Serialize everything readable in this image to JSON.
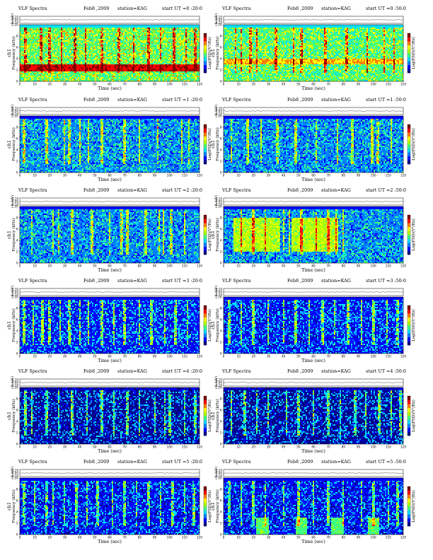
{
  "chart_data": [
    {
      "type": "heatmap",
      "panel": "spectrogram",
      "header": {
        "title": "VLF Spectra",
        "date": "Feb8 ,2009",
        "station": "station=KAG",
        "start": "start  UT =0 :20:0"
      },
      "ch_label": "ch 1(V)",
      "ch_ticks": [
        "0.10",
        "0.00",
        "-0.10"
      ],
      "ylabel_main": "ch1",
      "ylabel_sub": "Frequency  (kHz)",
      "yticks": [
        "0",
        "2",
        "4",
        "6",
        "8",
        "10"
      ],
      "xlabel": "Time  (sec)",
      "xticks": [
        "0",
        "10",
        "20",
        "30",
        "40",
        "50",
        "60",
        "70",
        "80",
        "90",
        "100",
        "110",
        "120"
      ],
      "xlim": [
        0,
        120
      ],
      "ylim": [
        0,
        10
      ],
      "cbar_label": "Log(PSD)(V²/Hz)",
      "base_intensity": 0.55,
      "band_2_5kHz": 0.95,
      "burst_times_sec": [
        4,
        14,
        20,
        28,
        37,
        44,
        55,
        66,
        76,
        86,
        94,
        103,
        111,
        117
      ]
    },
    {
      "type": "heatmap",
      "panel": "spectrogram",
      "header": {
        "title": "VLF Spectra",
        "date": "Feb8 ,2009",
        "station": "station=KAG",
        "start": "start  UT =0 :50:0"
      },
      "ch_label": "ch 1(V)",
      "ch_ticks": [
        "0.10",
        "0.00",
        "-0.10"
      ],
      "ylabel_main": "ch1",
      "ylabel_sub": "Frequency  (kHz)",
      "yticks": [
        "0",
        "2",
        "4",
        "6",
        "8",
        "10"
      ],
      "xlabel": "Time  (sec)",
      "xticks": [
        "0",
        "10",
        "20",
        "30",
        "40",
        "50",
        "60",
        "70",
        "80",
        "90",
        "100",
        "110",
        "120"
      ],
      "xlim": [
        0,
        120
      ],
      "ylim": [
        0,
        10
      ],
      "cbar_label": "Log(PSD)(V²/Hz)",
      "base_intensity": 0.5,
      "band_3_5kHz": 0.75,
      "burst_times_sec": [
        8,
        12,
        18,
        22,
        35,
        47,
        52,
        68,
        82,
        96,
        107,
        114
      ]
    },
    {
      "type": "heatmap",
      "panel": "spectrogram",
      "header": {
        "title": "VLF Spectra",
        "date": "Feb8 ,2009",
        "station": "station=KAG",
        "start": "start  UT =1 :20:0"
      },
      "ch_label": "ch 1(V)",
      "ch_ticks": [
        "0.10",
        "0.00",
        "-0.10"
      ],
      "ylabel_main": "ch1",
      "ylabel_sub": "Frequency  (kHz)",
      "yticks": [
        "0",
        "2",
        "4",
        "6",
        "8",
        "10"
      ],
      "xlabel": "Time  (sec)",
      "xticks": [
        "0",
        "10",
        "20",
        "30",
        "40",
        "50",
        "60",
        "70",
        "80",
        "90",
        "100",
        "110",
        "120"
      ],
      "xlim": [
        0,
        120
      ],
      "ylim": [
        0,
        10
      ],
      "cbar_label": "Log(PSD)(V²/Hz)",
      "base_intensity": 0.32,
      "burst_times_sec": [
        3,
        18,
        30,
        33,
        40,
        46,
        55,
        70,
        80,
        92,
        108,
        113
      ]
    },
    {
      "type": "heatmap",
      "panel": "spectrogram",
      "header": {
        "title": "VLF Spectra",
        "date": "Feb8 ,2009",
        "station": "station=KAG",
        "start": "start  UT =1 :50:0"
      },
      "ch_label": "ch 1(V)",
      "ch_ticks": [
        "0.10",
        "0.00",
        "-0.10"
      ],
      "ylabel_main": "ch1",
      "ylabel_sub": "Frequency  (kHz)",
      "yticks": [
        "0",
        "2",
        "4",
        "6",
        "8",
        "10"
      ],
      "xlabel": "Time  (sec)",
      "xticks": [
        "0",
        "10",
        "20",
        "30",
        "40",
        "50",
        "60",
        "70",
        "80",
        "90",
        "100",
        "110",
        "120"
      ],
      "xlim": [
        0,
        120
      ],
      "ylim": [
        0,
        10
      ],
      "cbar_label": "Log(PSD)(V²/Hz)",
      "base_intensity": 0.3,
      "burst_times_sec": [
        5,
        16,
        25,
        36,
        48,
        62,
        76,
        86,
        99,
        103,
        112
      ]
    },
    {
      "type": "heatmap",
      "panel": "spectrogram",
      "header": {
        "title": "VLF Spectra",
        "date": "Feb8 ,2009",
        "station": "station=KAG",
        "start": "start  UT =2 :20:0"
      },
      "ch_label": "ch 1(V)",
      "ch_ticks": [
        "0.10",
        "0.00",
        "-0.10"
      ],
      "ylabel_main": "ch1",
      "ylabel_sub": "Frequency  (kHz)",
      "yticks": [
        "0",
        "2",
        "4",
        "6",
        "8",
        "10"
      ],
      "xlabel": "Time  (sec)",
      "xticks": [
        "0",
        "10",
        "20",
        "30",
        "40",
        "50",
        "60",
        "70",
        "80",
        "90",
        "100",
        "110",
        "120"
      ],
      "xlim": [
        0,
        120
      ],
      "ylim": [
        0,
        10
      ],
      "cbar_label": "Log(PSD)(V²/Hz)",
      "base_intensity": 0.3,
      "burst_times_sec": [
        8,
        22,
        26,
        35,
        48,
        60,
        68,
        72,
        84,
        93,
        96,
        101,
        110
      ]
    },
    {
      "type": "heatmap",
      "panel": "spectrogram",
      "header": {
        "title": "VLF Spectra",
        "date": "Feb8 ,2009",
        "station": "station=KAG",
        "start": "start  UT =2 :50:0"
      },
      "ch_label": "ch 1(V)",
      "ch_ticks": [
        "0.10",
        "0.00",
        "-0.10"
      ],
      "ylabel_main": "ch1",
      "ylabel_sub": "Frequency  (kHz)",
      "yticks": [
        "0",
        "2",
        "4",
        "6",
        "8",
        "10"
      ],
      "xlabel": "Time  (sec)",
      "xticks": [
        "0",
        "10",
        "20",
        "30",
        "40",
        "50",
        "60",
        "70",
        "80",
        "90",
        "100",
        "110",
        "120"
      ],
      "xlim": [
        0,
        120
      ],
      "ylim": [
        0,
        10
      ],
      "cbar_label": "Log(PSD)(V²/Hz)",
      "base_intensity": 0.3,
      "bright_spans_sec": [
        [
          7,
          38
        ],
        [
          45,
          77
        ]
      ],
      "burst_times_sec": [
        12,
        20,
        28,
        40,
        44,
        52,
        62,
        70,
        75,
        80
      ]
    },
    {
      "type": "heatmap",
      "panel": "spectrogram",
      "header": {
        "title": "VLF Spectra",
        "date": "Feb8 ,2009",
        "station": "station=KAG",
        "start": "start  UT =3 :20:0"
      },
      "ch_label": "ch 1(V)",
      "ch_ticks": [
        "0.10",
        "0.00",
        "-0.10"
      ],
      "ylabel_main": "ch1",
      "ylabel_sub": "Frequency  (kHz)",
      "yticks": [
        "0",
        "2",
        "4",
        "6",
        "8",
        "10"
      ],
      "xlabel": "Time  (sec)",
      "xticks": [
        "0",
        "10",
        "20",
        "30",
        "40",
        "50",
        "60",
        "70",
        "80",
        "90",
        "100",
        "110",
        "120"
      ],
      "xlim": [
        0,
        120
      ],
      "ylim": [
        0,
        10
      ],
      "cbar_label": "Log(PSD)(V²/Hz)",
      "base_intensity": 0.25,
      "burst_times_sec": [
        3,
        9,
        15,
        20,
        27,
        33,
        40,
        46,
        55,
        63,
        70,
        80,
        88,
        97,
        104,
        112
      ]
    },
    {
      "type": "heatmap",
      "panel": "spectrogram",
      "header": {
        "title": "VLF Spectra",
        "date": "Feb8 ,2009",
        "station": "station=KAG",
        "start": "start  UT =3 :50:0"
      },
      "ch_label": "ch 1(V)",
      "ch_ticks": [
        "0.10",
        "0.00",
        "-0.10"
      ],
      "ylabel_main": "ch1",
      "ylabel_sub": "Frequency  (kHz)",
      "yticks": [
        "0",
        "2",
        "4",
        "6",
        "8",
        "10"
      ],
      "xlabel": "Time  (sec)",
      "xticks": [
        "0",
        "10",
        "20",
        "30",
        "40",
        "50",
        "60",
        "70",
        "80",
        "90",
        "100",
        "110",
        "120"
      ],
      "xlim": [
        0,
        120
      ],
      "ylim": [
        0,
        10
      ],
      "cbar_label": "Log(PSD)(V²/Hz)",
      "base_intensity": 0.23,
      "burst_times_sec": [
        4,
        12,
        20,
        30,
        40,
        48,
        57,
        66,
        74,
        83,
        92,
        100,
        109,
        116
      ]
    },
    {
      "type": "heatmap",
      "panel": "spectrogram",
      "header": {
        "title": "VLF Spectra",
        "date": "Feb8 ,2009",
        "station": "station=KAG",
        "start": "start  UT =4 :20:0"
      },
      "ch_label": "ch 1(V)",
      "ch_ticks": [
        "0.10",
        "0.00",
        "-0.10"
      ],
      "ylabel_main": "ch1",
      "ylabel_sub": "Frequency  (kHz)",
      "yticks": [
        "0",
        "2",
        "4",
        "6",
        "8",
        "10"
      ],
      "xlabel": "Time  (sec)",
      "xticks": [
        "0",
        "10",
        "20",
        "30",
        "40",
        "50",
        "60",
        "70",
        "80",
        "90",
        "100",
        "110",
        "120"
      ],
      "xlim": [
        0,
        120
      ],
      "ylim": [
        0,
        10
      ],
      "cbar_label": "Log(PSD)(V²/Hz)",
      "base_intensity": 0.17,
      "burst_times_sec": [
        4,
        8,
        18,
        26,
        35,
        45,
        55,
        63,
        72,
        80,
        90,
        97,
        100,
        110,
        117
      ]
    },
    {
      "type": "heatmap",
      "panel": "spectrogram",
      "header": {
        "title": "VLF Spectra",
        "date": "Feb8 ,2009",
        "station": "station=KAG",
        "start": "start  UT =4 :50:0"
      },
      "ch_label": "ch 1(V)",
      "ch_ticks": [
        "0.10",
        "0.00",
        "-0.10"
      ],
      "ylabel_main": "ch1",
      "ylabel_sub": "Frequency  (kHz)",
      "yticks": [
        "0",
        "2",
        "4",
        "6",
        "8",
        "10"
      ],
      "xlabel": "Time  (sec)",
      "xticks": [
        "0",
        "10",
        "20",
        "30",
        "40",
        "50",
        "60",
        "70",
        "80",
        "90",
        "100",
        "110",
        "120"
      ],
      "xlim": [
        0,
        120
      ],
      "ylim": [
        0,
        10
      ],
      "cbar_label": "Log(PSD)(V²/Hz)",
      "base_intensity": 0.18,
      "burst_times_sec": [
        5,
        14,
        22,
        30,
        42,
        50,
        60,
        70,
        78,
        88,
        95,
        104,
        112,
        118
      ]
    },
    {
      "type": "heatmap",
      "panel": "spectrogram",
      "header": {
        "title": "VLF Spectra",
        "date": "Feb8 ,2009",
        "station": "station=KAG",
        "start": "start  UT =5 :20:0"
      },
      "ch_label": "ch 1(V)",
      "ch_ticks": [
        "0.10",
        "0.00",
        "-0.10"
      ],
      "ylabel_main": "ch1",
      "ylabel_sub": "Frequency  (kHz)",
      "yticks": [
        "0",
        "2",
        "4",
        "6",
        "8",
        "10"
      ],
      "xlabel": "Time  (sec)",
      "xticks": [
        "0",
        "10",
        "20",
        "30",
        "40",
        "50",
        "60",
        "70",
        "80",
        "90",
        "100",
        "110",
        "120"
      ],
      "xlim": [
        0,
        120
      ],
      "ylim": [
        0,
        10
      ],
      "cbar_label": "Log(PSD)(V²/Hz)",
      "base_intensity": 0.2,
      "burst_times_sec": [
        3,
        10,
        18,
        22,
        30,
        38,
        45,
        52,
        62,
        70,
        78,
        86,
        94,
        102,
        110,
        116
      ]
    },
    {
      "type": "heatmap",
      "panel": "spectrogram",
      "header": {
        "title": "VLF Spectra",
        "date": "Feb8 ,2009",
        "station": "station=KAG",
        "start": "start  UT =5 :50:0"
      },
      "ch_label": "ch 1(V)",
      "ch_ticks": [
        "0.10",
        "0.00",
        "-0.10"
      ],
      "ylabel_main": "ch1",
      "ylabel_sub": "Frequency  (kHz)",
      "yticks": [
        "0",
        "2",
        "4",
        "6",
        "8",
        "10"
      ],
      "xlabel": "Time  (sec)",
      "xticks": [
        "0",
        "10",
        "20",
        "30",
        "40",
        "50",
        "60",
        "70",
        "80",
        "90",
        "100",
        "110",
        "120"
      ],
      "xlim": [
        0,
        120
      ],
      "ylim": [
        0,
        10
      ],
      "cbar_label": "Log(PSD)(V²/Hz)",
      "base_intensity": 0.2,
      "patch_times_sec": [
        [
          22,
          30
        ],
        [
          48,
          56
        ],
        [
          72,
          80
        ],
        [
          96,
          104
        ]
      ],
      "burst_times_sec": [
        4,
        12,
        20,
        28,
        40,
        50,
        60,
        70,
        80,
        92,
        100,
        110,
        116
      ]
    }
  ],
  "colormap": [
    "#00008a",
    "#0000ff",
    "#0080ff",
    "#00e0ff",
    "#40ff80",
    "#b0ff00",
    "#ffff00",
    "#ff8000",
    "#ff0000",
    "#800000"
  ]
}
